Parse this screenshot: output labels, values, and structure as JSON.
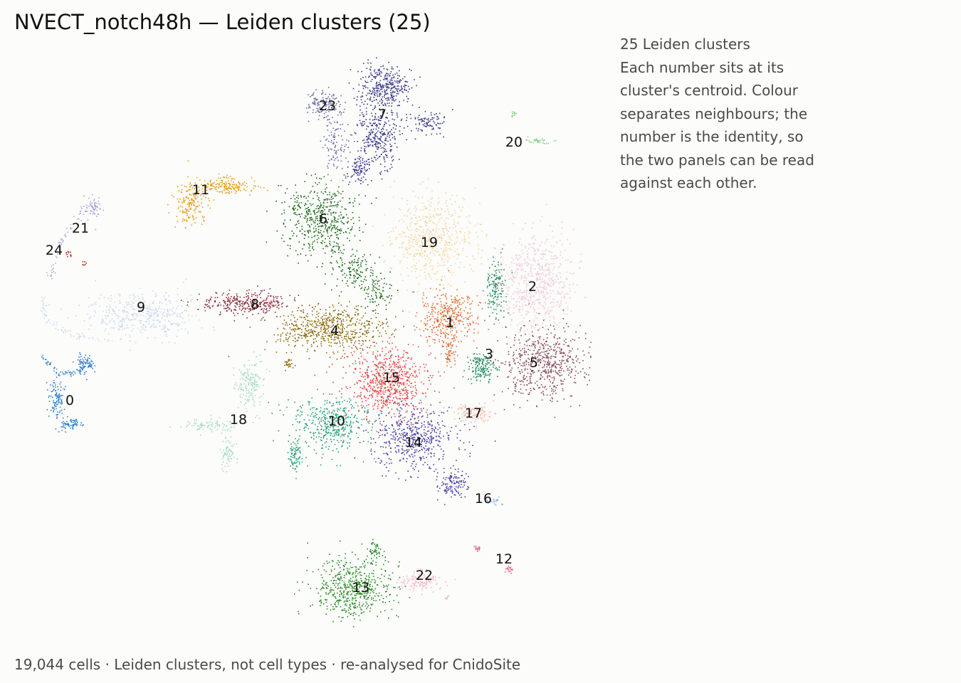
{
  "header": {
    "title": "NVECT_notch48h — Leiden clusters (25)"
  },
  "note": {
    "lines": [
      "25 Leiden clusters",
      "Each number sits at its",
      "cluster's centroid. Colour",
      "separates neighbours; the",
      "number is the identity, so",
      "the two panels can be read",
      "against each other."
    ]
  },
  "footer": {
    "text": "19,044 cells · Leiden clusters, not cell types · re-analysed for CnidoSite"
  },
  "chart_data": {
    "type": "scatter",
    "title": "NVECT_notch48h — Leiden clusters (25)",
    "xlabel": "",
    "ylabel": "",
    "axes_visible": false,
    "grid": false,
    "total_cells": 19044,
    "clusters": [
      {
        "label": "0",
        "color": "#2f7fd0"
      },
      {
        "label": "1",
        "color": "#e0703a"
      },
      {
        "label": "2",
        "color": "#f0c8dc"
      },
      {
        "label": "3",
        "color": "#2a8c62"
      },
      {
        "label": "4",
        "color": "#8c6a10"
      },
      {
        "label": "5",
        "color": "#8a4c62"
      },
      {
        "label": "6",
        "color": "#1e6a1e"
      },
      {
        "label": "7",
        "color": "#3a3a8c"
      },
      {
        "label": "8",
        "color": "#8c2a3a"
      },
      {
        "label": "9",
        "color": "#c8d8f0"
      },
      {
        "label": "10",
        "color": "#2aa07c"
      },
      {
        "label": "11",
        "color": "#e8a020"
      },
      {
        "label": "12",
        "color": "#e06888"
      },
      {
        "label": "13",
        "color": "#2a8c2a"
      },
      {
        "label": "14",
        "color": "#4a40a8"
      },
      {
        "label": "15",
        "color": "#e04848"
      },
      {
        "label": "16",
        "color": "#8cb4e8"
      },
      {
        "label": "17",
        "color": "#f4b8a4"
      },
      {
        "label": "18",
        "color": "#a8dcc8"
      },
      {
        "label": "19",
        "color": "#f4d4a0"
      },
      {
        "label": "20",
        "color": "#8cd08c"
      },
      {
        "label": "21",
        "color": "#a8a0d8"
      },
      {
        "label": "22",
        "color": "#f4b8c8"
      },
      {
        "label": "23",
        "color": "#6a6aa8"
      },
      {
        "label": "24",
        "color": "#a83020"
      }
    ]
  }
}
